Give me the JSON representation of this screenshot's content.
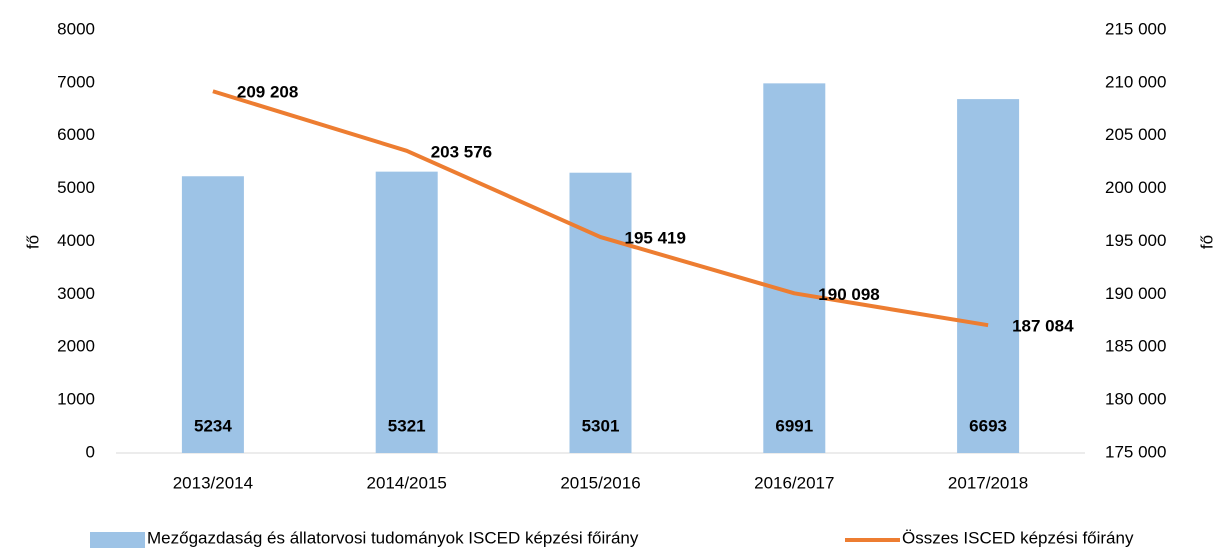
{
  "chart_data": {
    "type": "bar",
    "categories": [
      "2013/2014",
      "2014/2015",
      "2015/2016",
      "2016/2017",
      "2017/2018"
    ],
    "y_label": "fő",
    "y2_label": "fő",
    "ylim": [
      0,
      8000
    ],
    "yticks": [
      0,
      1000,
      2000,
      3000,
      4000,
      5000,
      6000,
      7000,
      8000
    ],
    "y2lim": [
      175000,
      215000
    ],
    "y2ticks": [
      {
        "value": 175000,
        "label": "175 000"
      },
      {
        "value": 180000,
        "label": "180 000"
      },
      {
        "value": 185000,
        "label": "185 000"
      },
      {
        "value": 190000,
        "label": "190 000"
      },
      {
        "value": 195000,
        "label": "195 000"
      },
      {
        "value": 200000,
        "label": "200 000"
      },
      {
        "value": 205000,
        "label": "205 000"
      },
      {
        "value": 210000,
        "label": "210 000"
      },
      {
        "value": 215000,
        "label": "215 000"
      }
    ],
    "grid": false,
    "legend": "bottom",
    "series": [
      {
        "name": "Mezőgazdaság és állatorvosi tudományok ISCED képzési főirány",
        "type": "bar",
        "color": "#9dc3e6",
        "values": [
          5234,
          5321,
          5301,
          6991,
          6693
        ]
      },
      {
        "name": "Összes ISCED képzési főirány",
        "type": "line",
        "axis": "y2",
        "color": "#ed7d31",
        "values": [
          209208,
          203576,
          195419,
          190098,
          187084
        ],
        "value_labels": [
          "209 208",
          "203 576",
          "195 419",
          "190 098",
          "187 084"
        ]
      }
    ]
  }
}
